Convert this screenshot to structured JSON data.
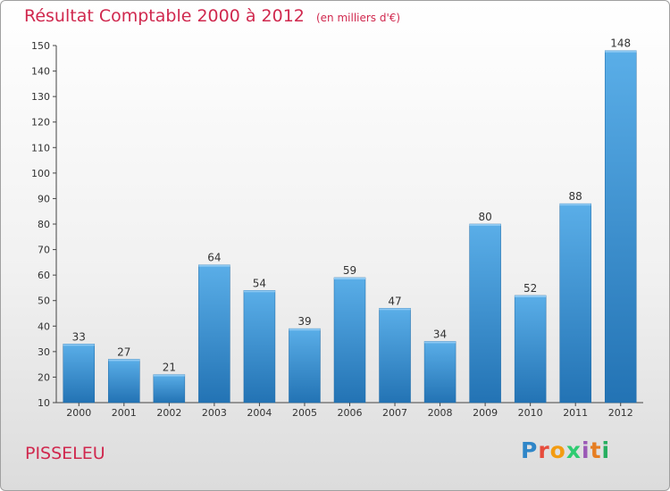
{
  "header": {
    "title": "Résultat Comptable 2000 à 2012",
    "unit": "(en milliers d'€)"
  },
  "footer": {
    "commune": "PISSELEU",
    "logo_letters": [
      "P",
      "r",
      "o",
      "x",
      "i",
      "t",
      "i"
    ],
    "logo_colors": [
      "#2f86c8",
      "#e74c3c",
      "#f39c12",
      "#2ecc71",
      "#9b59b6",
      "#e67e22",
      "#27ae60"
    ]
  },
  "colors": {
    "title": "#d0284e",
    "bar_top": "#5aaee8",
    "bar_bottom": "#2373b4"
  },
  "chart_data": {
    "type": "bar",
    "title": "Résultat Comptable 2000 à 2012",
    "categories": [
      "2000",
      "2001",
      "2002",
      "2003",
      "2004",
      "2005",
      "2006",
      "2007",
      "2008",
      "2009",
      "2010",
      "2011",
      "2012"
    ],
    "values": [
      33,
      27,
      21,
      64,
      54,
      39,
      59,
      47,
      34,
      80,
      52,
      88,
      148
    ],
    "ylim": [
      10,
      150
    ],
    "yticks": [
      10,
      20,
      30,
      40,
      50,
      60,
      70,
      80,
      90,
      100,
      110,
      120,
      130,
      140,
      150
    ],
    "grid": false,
    "data_labels": true
  }
}
